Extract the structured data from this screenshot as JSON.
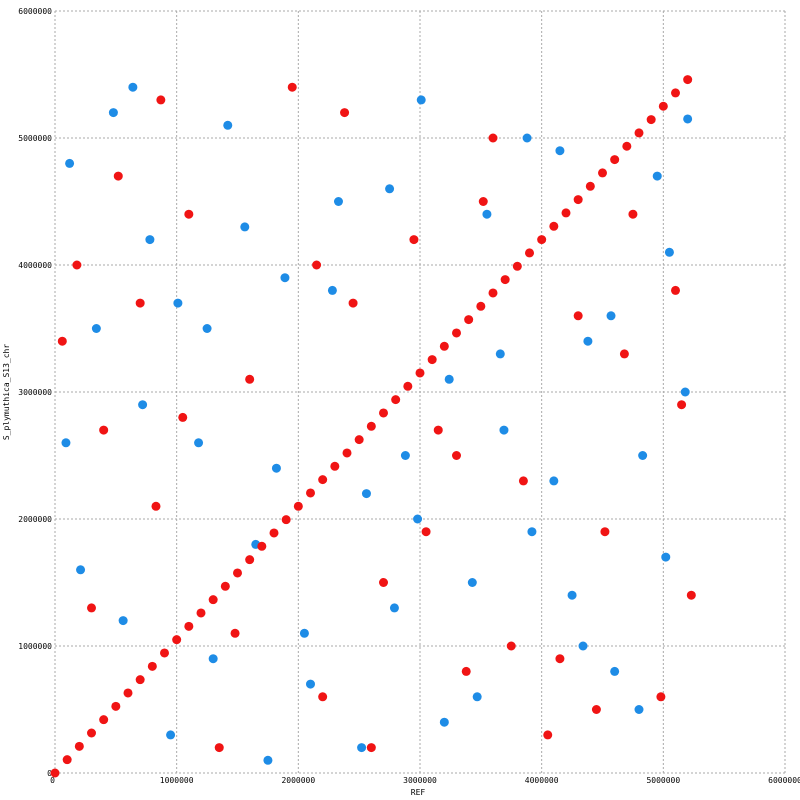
{
  "chart_data": {
    "type": "scatter",
    "x_label": "REF",
    "y_label": "S_plymuthica_S13_chr",
    "xlim": [
      0,
      6000000
    ],
    "ylim": [
      0,
      6000000
    ],
    "xticks": [
      0,
      1000000,
      2000000,
      3000000,
      4000000,
      5000000,
      6000000
    ],
    "yticks": [
      0,
      1000000,
      2000000,
      3000000,
      4000000,
      5000000,
      6000000
    ],
    "grid": true,
    "series": [
      {
        "color": "#1e8ce6",
        "x": [
          120000,
          340000,
          560000,
          780000,
          950000,
          1180000,
          1420000,
          1650000,
          1890000,
          2100000,
          2330000,
          2560000,
          2790000,
          3010000,
          3240000,
          3470000,
          3690000,
          3920000,
          4150000,
          4380000,
          4600000,
          4830000,
          5050000,
          5200000,
          210000,
          480000,
          720000,
          1010000,
          1300000,
          1560000,
          1820000,
          2050000,
          2280000,
          2520000,
          2750000,
          2980000,
          3200000,
          3430000,
          3660000,
          3880000,
          4100000,
          4340000,
          4570000,
          4800000,
          5020000,
          5180000,
          90000,
          640000,
          1250000,
          2880000,
          3550000,
          4250000,
          4950000,
          1750000
        ],
        "y": [
          4800000,
          3500000,
          1200000,
          4200000,
          300000,
          2600000,
          5100000,
          1800000,
          3900000,
          700000,
          4500000,
          2200000,
          1300000,
          5300000,
          3100000,
          600000,
          2700000,
          1900000,
          4900000,
          3400000,
          800000,
          2500000,
          4100000,
          5150000,
          1600000,
          5200000,
          2900000,
          3700000,
          900000,
          4300000,
          2400000,
          1100000,
          3800000,
          200000,
          4600000,
          2000000,
          400000,
          1500000,
          3300000,
          5000000,
          2300000,
          1000000,
          3600000,
          500000,
          1700000,
          3000000,
          2600000,
          5400000,
          3500000,
          2500000,
          4400000,
          1400000,
          4700000,
          100000
        ]
      },
      {
        "color": "#f01414",
        "x": [
          60000,
          300000,
          520000,
          830000,
          1100000,
          1350000,
          1600000,
          1950000,
          2200000,
          2450000,
          2700000,
          2950000,
          3150000,
          3380000,
          3600000,
          3850000,
          4050000,
          4300000,
          4520000,
          4750000,
          4980000,
          5150000,
          400000,
          870000,
          1480000,
          2150000,
          2600000,
          3300000,
          3750000,
          4450000,
          5100000,
          180000,
          1050000,
          2380000,
          3050000,
          3520000,
          4150000,
          4680000,
          5230000,
          700000
        ],
        "y": [
          3400000,
          1300000,
          4700000,
          2100000,
          4400000,
          200000,
          3100000,
          5400000,
          600000,
          3700000,
          1500000,
          4200000,
          2700000,
          800000,
          5000000,
          2300000,
          300000,
          3600000,
          1900000,
          4400000,
          600000,
          2900000,
          2700000,
          5300000,
          1100000,
          4000000,
          200000,
          2500000,
          1000000,
          500000,
          3800000,
          4000000,
          2800000,
          5200000,
          1900000,
          4500000,
          900000,
          3300000,
          1400000,
          3700000
        ]
      },
      {
        "color": "#f01414",
        "x": [
          0,
          100000,
          200000,
          300000,
          400000,
          500000,
          600000,
          700000,
          800000,
          900000,
          1000000,
          1100000,
          1200000,
          1300000,
          1400000,
          1500000,
          1600000,
          1700000,
          1800000,
          1900000,
          2000000,
          2100000,
          2200000,
          2300000,
          2400000,
          2500000,
          2600000,
          2700000,
          2800000,
          2900000,
          3000000,
          3100000,
          3200000,
          3300000,
          3400000,
          3500000,
          3600000,
          3700000,
          3800000,
          3900000,
          4000000,
          4100000,
          4200000,
          4300000,
          4400000,
          4500000,
          4600000,
          4700000,
          4800000,
          4900000,
          5000000,
          5100000,
          5200000
        ],
        "y": [
          0,
          105000,
          210000,
          315000,
          420000,
          525000,
          630000,
          735000,
          840000,
          945000,
          1050000,
          1155000,
          1260000,
          1365000,
          1470000,
          1575000,
          1680000,
          1785000,
          1890000,
          1995000,
          2100000,
          2205000,
          2310000,
          2415000,
          2520000,
          2625000,
          2730000,
          2835000,
          2940000,
          3045000,
          3150000,
          3255000,
          3360000,
          3465000,
          3570000,
          3675000,
          3780000,
          3885000,
          3990000,
          4095000,
          4200000,
          4305000,
          4410000,
          4515000,
          4620000,
          4725000,
          4830000,
          4935000,
          5040000,
          5145000,
          5250000,
          5355000,
          5460000
        ]
      }
    ]
  }
}
